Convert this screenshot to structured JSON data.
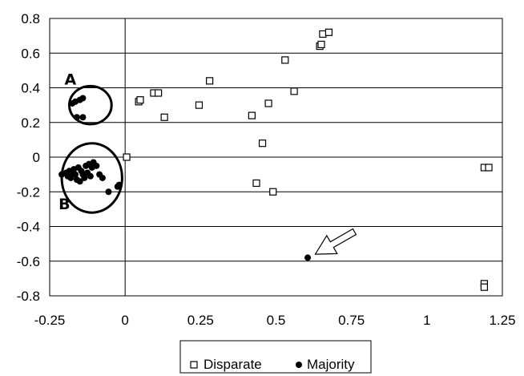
{
  "chart_data": {
    "type": "scatter",
    "title": "",
    "xlabel": "",
    "ylabel": "",
    "xlim": [
      -0.25,
      1.25
    ],
    "ylim": [
      -0.8,
      0.8
    ],
    "xticks": [
      -0.25,
      0,
      0.25,
      0.5,
      0.75,
      1,
      1.25
    ],
    "yticks": [
      -0.8,
      -0.6,
      -0.4,
      -0.2,
      0,
      0.2,
      0.4,
      0.6,
      0.8
    ],
    "xtick_labels": [
      "-0.25",
      "0",
      "0.25",
      "0.5",
      "0.75",
      "1",
      "1.25"
    ],
    "ytick_labels": [
      "-0.8",
      "-0.6",
      "-0.4",
      "-0.2",
      "0",
      "0.2",
      "0.4",
      "0.6",
      "0.8"
    ],
    "grid": "horizontal",
    "legend_position": "bottom-center",
    "series": [
      {
        "name": "Disparate",
        "marker": "open-square",
        "color": "#000000",
        "points": [
          [
            0.005,
            0.0
          ],
          [
            0.045,
            0.32
          ],
          [
            0.05,
            0.33
          ],
          [
            0.095,
            0.37
          ],
          [
            0.11,
            0.37
          ],
          [
            0.13,
            0.23
          ],
          [
            0.245,
            0.3
          ],
          [
            0.28,
            0.44
          ],
          [
            0.42,
            0.24
          ],
          [
            0.435,
            -0.15
          ],
          [
            0.455,
            0.08
          ],
          [
            0.475,
            0.31
          ],
          [
            0.49,
            -0.2
          ],
          [
            0.53,
            0.56
          ],
          [
            0.56,
            0.38
          ],
          [
            0.645,
            0.64
          ],
          [
            0.65,
            0.65
          ],
          [
            0.655,
            0.71
          ],
          [
            0.675,
            0.72
          ],
          [
            1.19,
            -0.06
          ],
          [
            1.205,
            -0.06
          ],
          [
            1.19,
            -0.73
          ],
          [
            1.19,
            -0.75
          ]
        ]
      },
      {
        "name": "Majority",
        "marker": "filled-circle",
        "color": "#000000",
        "points": [
          [
            -0.175,
            0.31
          ],
          [
            -0.165,
            0.32
          ],
          [
            -0.15,
            0.33
          ],
          [
            -0.14,
            0.34
          ],
          [
            -0.16,
            0.23
          ],
          [
            -0.14,
            0.23
          ],
          [
            -0.21,
            -0.1
          ],
          [
            -0.195,
            -0.09
          ],
          [
            -0.19,
            -0.11
          ],
          [
            -0.185,
            -0.08
          ],
          [
            -0.18,
            -0.12
          ],
          [
            -0.175,
            -0.09
          ],
          [
            -0.17,
            -0.07
          ],
          [
            -0.165,
            -0.1
          ],
          [
            -0.16,
            -0.13
          ],
          [
            -0.155,
            -0.06
          ],
          [
            -0.15,
            -0.14
          ],
          [
            -0.145,
            -0.08
          ],
          [
            -0.14,
            -0.1
          ],
          [
            -0.135,
            -0.12
          ],
          [
            -0.13,
            -0.05
          ],
          [
            -0.125,
            -0.09
          ],
          [
            -0.12,
            -0.04
          ],
          [
            -0.115,
            -0.11
          ],
          [
            -0.11,
            -0.06
          ],
          [
            -0.105,
            -0.03
          ],
          [
            -0.095,
            -0.05
          ],
          [
            -0.085,
            -0.1
          ],
          [
            -0.075,
            -0.12
          ],
          [
            -0.055,
            -0.2
          ],
          [
            -0.025,
            -0.17
          ],
          [
            -0.02,
            -0.16
          ],
          [
            0.605,
            -0.58
          ]
        ]
      }
    ],
    "annotations": [
      {
        "type": "ellipse",
        "label": "A",
        "center": [
          -0.115,
          0.3
        ],
        "rx": 0.07,
        "ry": 0.11
      },
      {
        "type": "ellipse",
        "label": "B",
        "center": [
          -0.11,
          -0.12
        ],
        "rx": 0.1,
        "ry": 0.2
      },
      {
        "type": "arrow",
        "from": [
          0.76,
          -0.43
        ],
        "to": [
          0.63,
          -0.56
        ]
      }
    ]
  }
}
